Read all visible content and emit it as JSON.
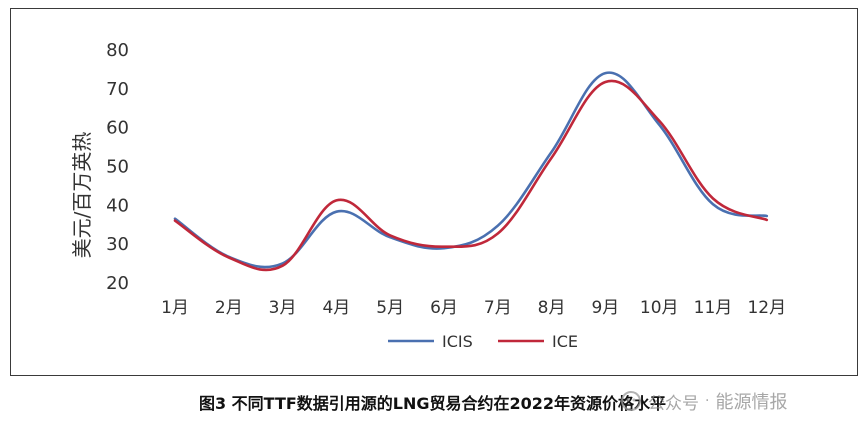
{
  "chart_data": {
    "type": "line",
    "categories": [
      "1月",
      "2月",
      "3月",
      "4月",
      "5月",
      "6月",
      "7月",
      "8月",
      "9月",
      "10月",
      "11月",
      "12月"
    ],
    "series": [
      {
        "name": "ICIS",
        "color": "#4a70b0",
        "values": [
          36.3,
          26.5,
          24.8,
          38.1,
          31.5,
          28.7,
          34.5,
          53.5,
          73.8,
          60.5,
          40.0,
          37.0
        ]
      },
      {
        "name": "ICE",
        "color": "#c0283a",
        "values": [
          35.8,
          26.3,
          24.2,
          41.0,
          32.0,
          29.1,
          32.5,
          52.0,
          71.5,
          61.5,
          41.5,
          36.0
        ]
      }
    ],
    "ylabel": "美元/百万英热",
    "ylim": [
      20,
      80
    ],
    "yticks": [
      20,
      30,
      40,
      50,
      60,
      70,
      80
    ],
    "grid": false,
    "legend_position": "bottom"
  },
  "caption": "图3  不同TTF数据引用源的LNG贸易合约在2022年资源价格水平",
  "watermark": {
    "source": "公众号",
    "separator": "·",
    "name": "能源情报"
  }
}
